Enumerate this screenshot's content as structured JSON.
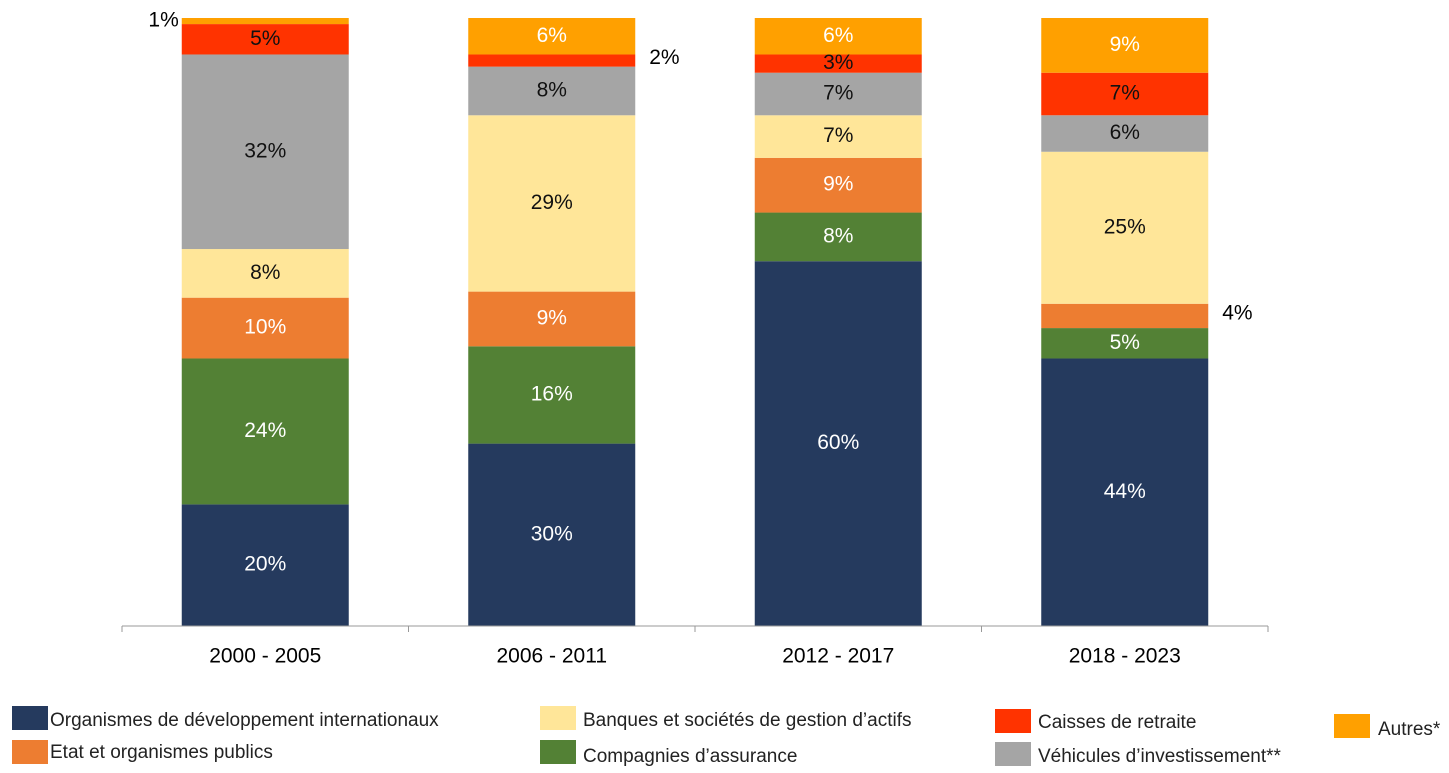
{
  "chart_data": {
    "type": "stacked_bar",
    "categories": [
      "2000 - 2005",
      "2006 - 2011",
      "2012 - 2017",
      "2018 - 2023"
    ],
    "ylim": [
      0,
      100
    ],
    "series": [
      {
        "name": "Organismes de développement internationaux",
        "color": "#253a5e",
        "values": [
          20,
          30,
          60,
          44
        ],
        "value_labels": [
          "20%",
          "30%",
          "60%",
          "44%"
        ]
      },
      {
        "name": "Compagnies d’assurance",
        "color": "#538135",
        "values": [
          24,
          16,
          8,
          5
        ],
        "value_labels": [
          "24%",
          "16%",
          "8%",
          "5%"
        ]
      },
      {
        "name": "Etat et organismes publics",
        "color": "#ed7d31",
        "values": [
          10,
          9,
          9,
          4
        ],
        "value_labels": [
          "10%",
          "9%",
          "9%",
          "4%"
        ]
      },
      {
        "name": "Banques et sociétés de gestion d’actifs",
        "color": "#ffe699",
        "values": [
          8,
          29,
          7,
          25
        ],
        "value_labels": [
          "8%",
          "29%",
          "7%",
          "25%"
        ]
      },
      {
        "name": "Véhicules d’investissement**",
        "color": "#a5a5a5",
        "values": [
          32,
          8,
          7,
          6
        ],
        "value_labels": [
          "32%",
          "8%",
          "7%",
          "6%"
        ]
      },
      {
        "name": "Caisses de retraite",
        "color": "#ff3300",
        "values": [
          5,
          2,
          3,
          7
        ],
        "value_labels": [
          "5%",
          "2%",
          "3%",
          "7%"
        ]
      },
      {
        "name": "Autres*",
        "color": "#ffa000",
        "values": [
          1,
          6,
          6,
          9
        ],
        "value_labels": [
          "1%",
          "6%",
          "6%",
          "9%"
        ]
      }
    ]
  }
}
